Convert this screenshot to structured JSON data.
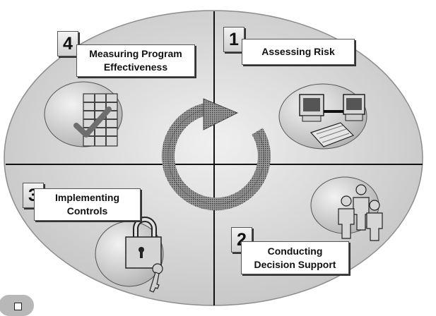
{
  "steps": [
    {
      "number": "1",
      "lines": [
        "Assessing Risk"
      ],
      "icon": "computers-icon"
    },
    {
      "number": "2",
      "lines": [
        "Conducting",
        "Decision Support"
      ],
      "icon": "people-group-icon"
    },
    {
      "number": "3",
      "lines": [
        "Implementing",
        "Controls"
      ],
      "icon": "padlock-icon"
    },
    {
      "number": "4",
      "lines": [
        "Measuring Program",
        "Effectiveness"
      ],
      "icon": "checklist-icon"
    }
  ],
  "colors": {
    "oval_center": "#f0f0f0",
    "oval_edge": "#c4c4c4",
    "arrow": "#555555",
    "axis": "#111111"
  }
}
